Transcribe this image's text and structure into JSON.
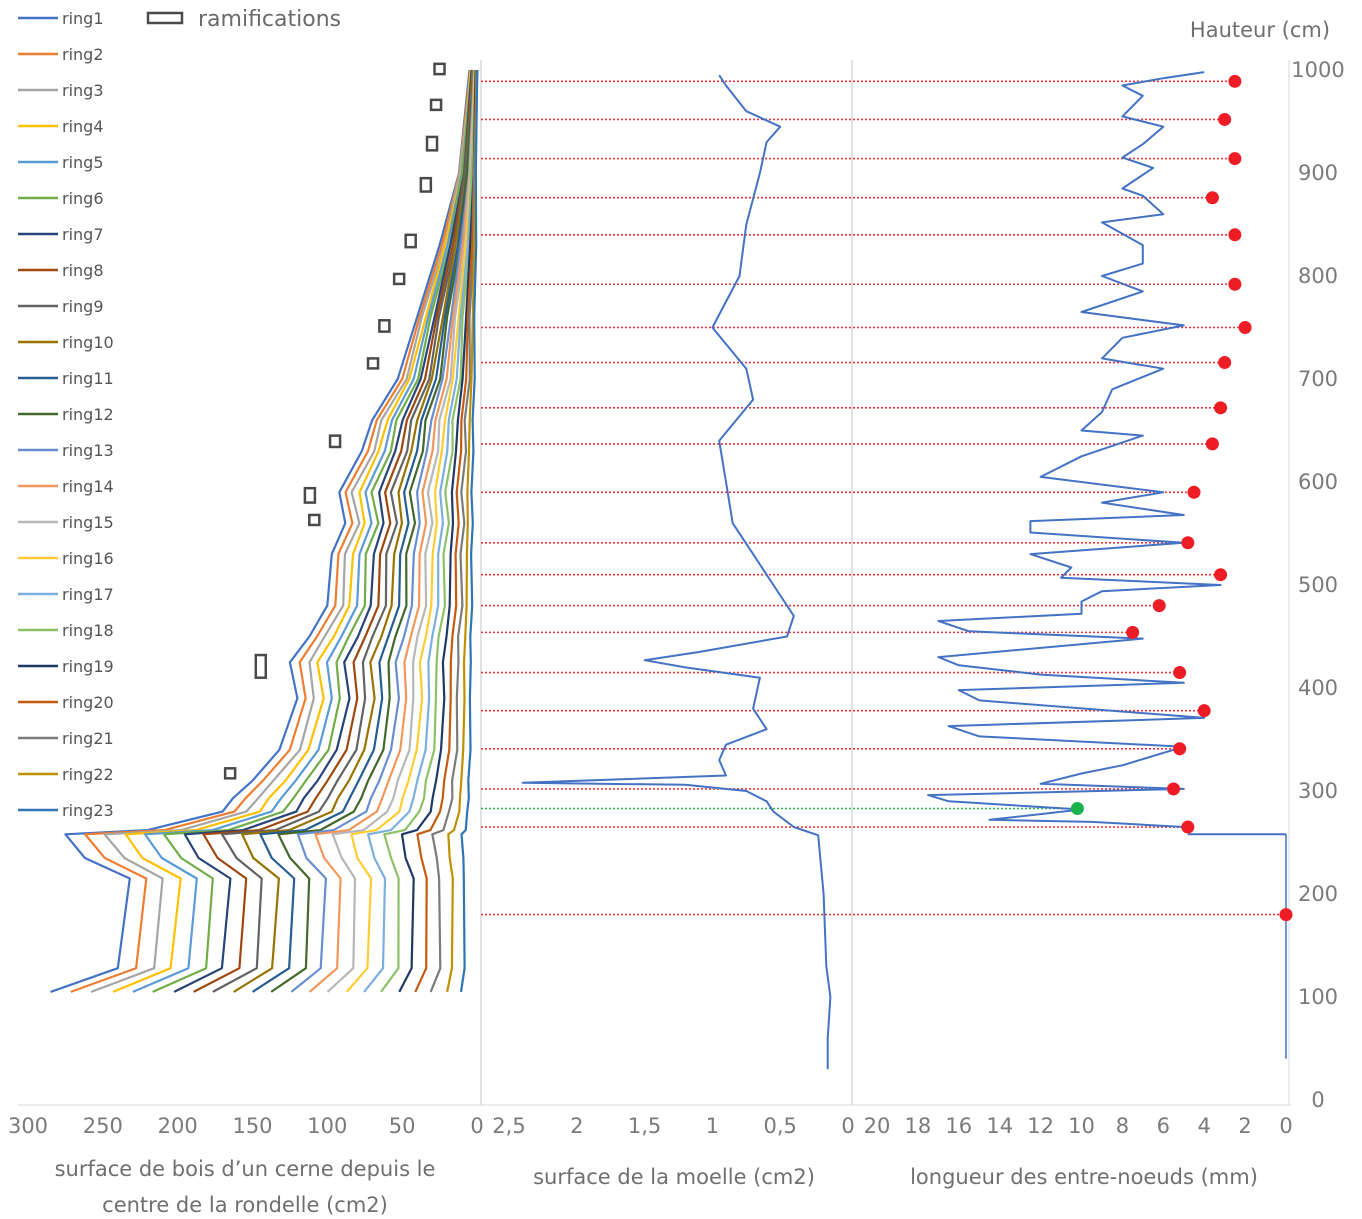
{
  "chart_data": {
    "type": "line",
    "title": "",
    "legend": {
      "items": [
        "ring1",
        "ring2",
        "ring3",
        "ring4",
        "ring5",
        "ring6",
        "ring7",
        "ring8",
        "ring9",
        "ring10",
        "ring11",
        "ring12",
        "ring13",
        "ring14",
        "ring15",
        "ring16",
        "ring17",
        "ring18",
        "ring19",
        "ring20",
        "ring21",
        "ring22",
        "ring23"
      ],
      "colors": [
        "#4472c4",
        "#ed7d31",
        "#a5a5a5",
        "#ffc000",
        "#5b9bd5",
        "#70ad47",
        "#264478",
        "#9e480e",
        "#636363",
        "#997300",
        "#255e91",
        "#43682b",
        "#698ed0",
        "#f1975a",
        "#b7b7b7",
        "#ffcd33",
        "#7cafdd",
        "#8cc168",
        "#1f3864",
        "#c55a11",
        "#7b7b7b",
        "#bf9000",
        "#2e75b6"
      ],
      "ramifications_label": "ramifications"
    },
    "y_axis": {
      "label": "Hauteur (cm)",
      "ylim": [
        0,
        1000
      ],
      "ticks": [
        "0",
        "100",
        "200",
        "300",
        "400",
        "500",
        "600",
        "700",
        "800",
        "900",
        "1000"
      ]
    },
    "panels": [
      {
        "id": "wood",
        "xlabel_lines": [
          "surface de bois d’un cerne depuis le",
          "centre de la rondelle (cm2)"
        ],
        "xlim": [
          300,
          0
        ],
        "ticks": [
          "300",
          "250",
          "200",
          "150",
          "100",
          "50",
          "0"
        ],
        "outer_ring_profile": [
          [
            285,
            105
          ],
          [
            240,
            128
          ],
          [
            232,
            215
          ],
          [
            262,
            235
          ],
          [
            275,
            258
          ],
          [
            220,
            262
          ],
          [
            170,
            280
          ],
          [
            163,
            293
          ],
          [
            150,
            310
          ],
          [
            132,
            340
          ],
          [
            120,
            390
          ],
          [
            125,
            425
          ],
          [
            112,
            450
          ],
          [
            100,
            480
          ],
          [
            97,
            530
          ],
          [
            88,
            560
          ],
          [
            92,
            590
          ],
          [
            77,
            630
          ],
          [
            70,
            660
          ],
          [
            53,
            700
          ],
          [
            40,
            760
          ],
          [
            25,
            830
          ],
          [
            12,
            900
          ],
          [
            5,
            1000
          ]
        ],
        "ramification_heights": [
          [
            996,
            1006
          ],
          [
            963,
            971
          ],
          [
            922,
            935
          ],
          [
            882,
            895
          ],
          [
            828,
            840
          ],
          [
            793,
            802
          ],
          [
            746,
            757
          ],
          [
            713,
            720
          ],
          [
            634,
            645
          ],
          [
            580,
            594
          ],
          [
            562,
            568
          ],
          [
            410,
            432
          ],
          [
            315,
            322
          ]
        ]
      },
      {
        "id": "moelle",
        "xlabel": "surface de la moelle (cm2)",
        "xlim": [
          2.5,
          0
        ],
        "ticks": [
          "2,5",
          "2",
          "1,5",
          "1",
          "0,5",
          "0"
        ],
        "profile": [
          [
            0.15,
            30
          ],
          [
            0.15,
            60
          ],
          [
            0.13,
            100
          ],
          [
            0.16,
            130
          ],
          [
            0.18,
            200
          ],
          [
            0.22,
            257
          ],
          [
            0.4,
            265
          ],
          [
            0.55,
            280
          ],
          [
            0.6,
            290
          ],
          [
            0.75,
            300
          ],
          [
            1.2,
            306
          ],
          [
            2.4,
            308
          ],
          [
            0.9,
            315
          ],
          [
            0.95,
            330
          ],
          [
            0.9,
            345
          ],
          [
            0.6,
            360
          ],
          [
            0.7,
            380
          ],
          [
            0.65,
            410
          ],
          [
            1.2,
            420
          ],
          [
            1.5,
            427
          ],
          [
            1.1,
            435
          ],
          [
            0.45,
            450
          ],
          [
            0.4,
            470
          ],
          [
            0.55,
            500
          ],
          [
            0.7,
            530
          ],
          [
            0.85,
            560
          ],
          [
            0.9,
            600
          ],
          [
            0.95,
            640
          ],
          [
            0.7,
            680
          ],
          [
            0.75,
            710
          ],
          [
            1.0,
            750
          ],
          [
            0.8,
            800
          ],
          [
            0.75,
            850
          ],
          [
            0.65,
            900
          ],
          [
            0.6,
            930
          ],
          [
            0.5,
            945
          ],
          [
            0.75,
            960
          ],
          [
            0.9,
            985
          ],
          [
            0.95,
            995
          ]
        ]
      },
      {
        "id": "entrenoeuds",
        "xlabel": "longueur des entre-noeuds (mm)",
        "xlim": [
          20,
          0
        ],
        "ticks": [
          "20",
          "18",
          "16",
          "14",
          "12",
          "10",
          "8",
          "6",
          "4",
          "2",
          "0"
        ],
        "profile": [
          [
            5.0,
            265
          ],
          [
            9.5,
            270
          ],
          [
            14.5,
            272
          ],
          [
            10,
            282
          ],
          [
            16.5,
            290
          ],
          [
            17.5,
            296
          ],
          [
            5,
            302
          ],
          [
            12,
            307
          ],
          [
            10,
            317
          ],
          [
            8,
            325
          ],
          [
            5,
            343
          ],
          [
            15,
            353
          ],
          [
            16.5,
            363
          ],
          [
            4,
            371
          ],
          [
            15,
            388
          ],
          [
            16,
            398
          ],
          [
            5,
            405
          ],
          [
            12,
            413
          ],
          [
            16,
            422
          ],
          [
            17,
            430
          ],
          [
            7,
            448
          ],
          [
            15.5,
            455
          ],
          [
            17,
            465
          ],
          [
            10,
            472
          ],
          [
            10,
            484
          ],
          [
            9,
            494
          ],
          [
            3.2,
            500
          ],
          [
            11,
            507
          ],
          [
            10.5,
            517
          ],
          [
            12.5,
            530
          ],
          [
            5,
            541
          ],
          [
            12.5,
            551
          ],
          [
            12.5,
            562
          ],
          [
            5,
            568
          ],
          [
            9,
            580
          ],
          [
            6,
            590
          ],
          [
            12,
            605
          ],
          [
            10,
            625
          ],
          [
            7,
            645
          ],
          [
            10,
            650
          ],
          [
            9,
            668
          ],
          [
            8.5,
            690
          ],
          [
            6,
            710
          ],
          [
            9,
            720
          ],
          [
            8,
            740
          ],
          [
            5,
            752
          ],
          [
            10,
            765
          ],
          [
            7,
            785
          ],
          [
            9,
            800
          ],
          [
            7,
            812
          ],
          [
            7,
            830
          ],
          [
            9,
            852
          ],
          [
            6,
            860
          ],
          [
            7,
            878
          ],
          [
            8,
            885
          ],
          [
            6.5,
            905
          ],
          [
            8,
            915
          ],
          [
            7,
            928
          ],
          [
            6,
            945
          ],
          [
            8,
            955
          ],
          [
            7,
            975
          ],
          [
            8,
            985
          ],
          [
            6,
            992
          ],
          [
            4,
            998
          ]
        ],
        "node_heights_red": [
          265,
          302,
          341,
          378,
          415,
          454,
          480,
          510,
          541,
          590,
          637,
          672,
          716,
          750,
          792,
          840,
          876,
          914,
          952,
          989,
          180
        ],
        "node_values_red": [
          4.8,
          5.5,
          5.2,
          4.0,
          5.2,
          7.5,
          6.2,
          3.2,
          4.8,
          4.5,
          3.6,
          3.2,
          3.0,
          2.0,
          2.5,
          2.5,
          3.6,
          2.5,
          3.0,
          2.5,
          0.0
        ],
        "node_heights_green": [
          283
        ],
        "node_values_green": [
          10.2
        ]
      }
    ]
  }
}
